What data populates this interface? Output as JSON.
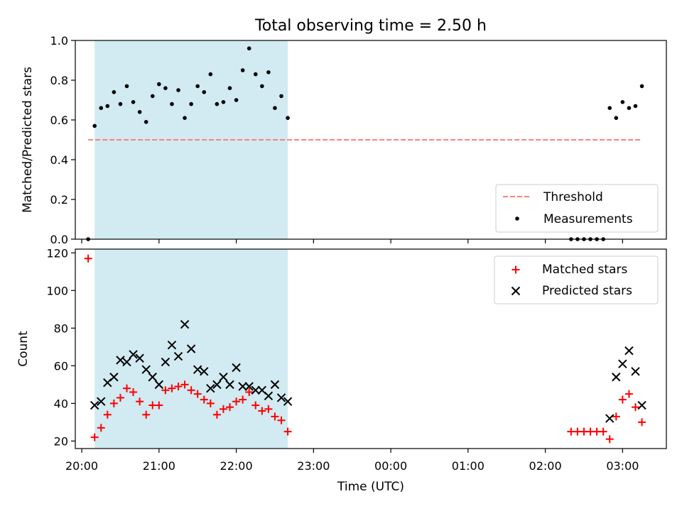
{
  "chart_data": [
    {
      "type": "scatter",
      "title": "Total observing time = 2.50 h",
      "ylabel": "Matched/Predicted stars",
      "ylim": [
        0,
        1.0
      ],
      "yticks": [
        "0.0",
        "0.2",
        "0.4",
        "0.6",
        "0.8",
        "1.0"
      ],
      "xlim": [
        "19:55",
        "03:34"
      ],
      "shaded_interval": [
        "20:10",
        "22:40"
      ],
      "threshold": {
        "value": 0.5,
        "x": [
          "20:05",
          "03:15"
        ],
        "color": "#ff7f7f",
        "style": "dashed"
      },
      "legend_position": "lower right",
      "legend": [
        "Threshold",
        "Measurements"
      ],
      "series": [
        {
          "name": "Measurements",
          "color": "#000000",
          "marker": "dot",
          "points": [
            [
              "20:05",
              0.0
            ],
            [
              "20:10",
              0.57
            ],
            [
              "20:15",
              0.66
            ],
            [
              "20:20",
              0.67
            ],
            [
              "20:25",
              0.74
            ],
            [
              "20:30",
              0.68
            ],
            [
              "20:35",
              0.77
            ],
            [
              "20:40",
              0.69
            ],
            [
              "20:45",
              0.64
            ],
            [
              "20:50",
              0.59
            ],
            [
              "20:55",
              0.72
            ],
            [
              "21:00",
              0.78
            ],
            [
              "21:05",
              0.76
            ],
            [
              "21:10",
              0.68
            ],
            [
              "21:15",
              0.75
            ],
            [
              "21:20",
              0.61
            ],
            [
              "21:25",
              0.68
            ],
            [
              "21:30",
              0.77
            ],
            [
              "21:35",
              0.74
            ],
            [
              "21:40",
              0.83
            ],
            [
              "21:45",
              0.68
            ],
            [
              "21:50",
              0.69
            ],
            [
              "21:55",
              0.76
            ],
            [
              "22:00",
              0.7
            ],
            [
              "22:05",
              0.85
            ],
            [
              "22:10",
              0.96
            ],
            [
              "22:15",
              0.83
            ],
            [
              "22:20",
              0.77
            ],
            [
              "22:25",
              0.84
            ],
            [
              "22:30",
              0.66
            ],
            [
              "22:35",
              0.72
            ],
            [
              "22:40",
              0.61
            ],
            [
              "02:20",
              0.0
            ],
            [
              "02:25",
              0.0
            ],
            [
              "02:30",
              0.0
            ],
            [
              "02:35",
              0.0
            ],
            [
              "02:40",
              0.0
            ],
            [
              "02:45",
              0.0
            ],
            [
              "02:50",
              0.66
            ],
            [
              "02:55",
              0.61
            ],
            [
              "03:00",
              0.69
            ],
            [
              "03:05",
              0.66
            ],
            [
              "03:10",
              0.67
            ],
            [
              "03:15",
              0.77
            ]
          ]
        }
      ]
    },
    {
      "type": "scatter",
      "xlabel": "Time (UTC)",
      "ylabel": "Count",
      "ylim": [
        16,
        122
      ],
      "yticks": [
        "20",
        "40",
        "60",
        "80",
        "100",
        "120"
      ],
      "xlim": [
        "19:55",
        "03:34"
      ],
      "xticks": [
        "20:00",
        "21:00",
        "22:00",
        "23:00",
        "00:00",
        "01:00",
        "02:00",
        "03:00"
      ],
      "shaded_interval": [
        "20:10",
        "22:40"
      ],
      "legend_position": "upper right",
      "legend": [
        "Matched stars",
        "Predicted stars"
      ],
      "series": [
        {
          "name": "Matched stars",
          "color": "#ff0000",
          "marker": "plus",
          "points": [
            [
              "20:05",
              117
            ],
            [
              "20:10",
              22
            ],
            [
              "20:15",
              27
            ],
            [
              "20:20",
              34
            ],
            [
              "20:25",
              40
            ],
            [
              "20:30",
              43
            ],
            [
              "20:35",
              48
            ],
            [
              "20:40",
              46
            ],
            [
              "20:45",
              41
            ],
            [
              "20:50",
              34
            ],
            [
              "20:55",
              39
            ],
            [
              "21:00",
              39
            ],
            [
              "21:05",
              47
            ],
            [
              "21:10",
              48
            ],
            [
              "21:15",
              49
            ],
            [
              "21:20",
              50
            ],
            [
              "21:25",
              47
            ],
            [
              "21:30",
              45
            ],
            [
              "21:35",
              42
            ],
            [
              "21:40",
              40
            ],
            [
              "21:45",
              34
            ],
            [
              "21:50",
              37
            ],
            [
              "21:55",
              38
            ],
            [
              "22:00",
              41
            ],
            [
              "22:05",
              42
            ],
            [
              "22:10",
              46
            ],
            [
              "22:15",
              39
            ],
            [
              "22:20",
              36
            ],
            [
              "22:25",
              37
            ],
            [
              "22:30",
              33
            ],
            [
              "22:35",
              31
            ],
            [
              "22:40",
              25
            ],
            [
              "02:20",
              25
            ],
            [
              "02:25",
              25
            ],
            [
              "02:30",
              25
            ],
            [
              "02:35",
              25
            ],
            [
              "02:40",
              25
            ],
            [
              "02:45",
              25
            ],
            [
              "02:50",
              21
            ],
            [
              "02:55",
              33
            ],
            [
              "03:00",
              42
            ],
            [
              "03:05",
              45
            ],
            [
              "03:10",
              38
            ],
            [
              "03:15",
              30
            ]
          ]
        },
        {
          "name": "Predicted stars",
          "color": "#000000",
          "marker": "x",
          "points": [
            [
              "20:10",
              39
            ],
            [
              "20:15",
              41
            ],
            [
              "20:20",
              51
            ],
            [
              "20:25",
              54
            ],
            [
              "20:30",
              63
            ],
            [
              "20:35",
              62
            ],
            [
              "20:40",
              66
            ],
            [
              "20:45",
              64
            ],
            [
              "20:50",
              58
            ],
            [
              "20:55",
              54
            ],
            [
              "21:00",
              50
            ],
            [
              "21:05",
              62
            ],
            [
              "21:10",
              71
            ],
            [
              "21:15",
              65
            ],
            [
              "21:20",
              82
            ],
            [
              "21:25",
              69
            ],
            [
              "21:30",
              58
            ],
            [
              "21:35",
              57
            ],
            [
              "21:40",
              48
            ],
            [
              "21:45",
              50
            ],
            [
              "21:50",
              54
            ],
            [
              "21:55",
              50
            ],
            [
              "22:00",
              59
            ],
            [
              "22:05",
              49
            ],
            [
              "22:10",
              49
            ],
            [
              "22:15",
              47
            ],
            [
              "22:20",
              47
            ],
            [
              "22:25",
              44
            ],
            [
              "22:30",
              50
            ],
            [
              "22:35",
              43
            ],
            [
              "22:40",
              41
            ],
            [
              "02:50",
              32
            ],
            [
              "02:55",
              54
            ],
            [
              "03:00",
              61
            ],
            [
              "03:05",
              68
            ],
            [
              "03:10",
              57
            ],
            [
              "03:15",
              39
            ]
          ]
        }
      ]
    }
  ],
  "colors": {
    "shade": "#add8e6",
    "matched": "#ff0000",
    "predicted": "#000000",
    "threshold": "#ff7f7f"
  }
}
